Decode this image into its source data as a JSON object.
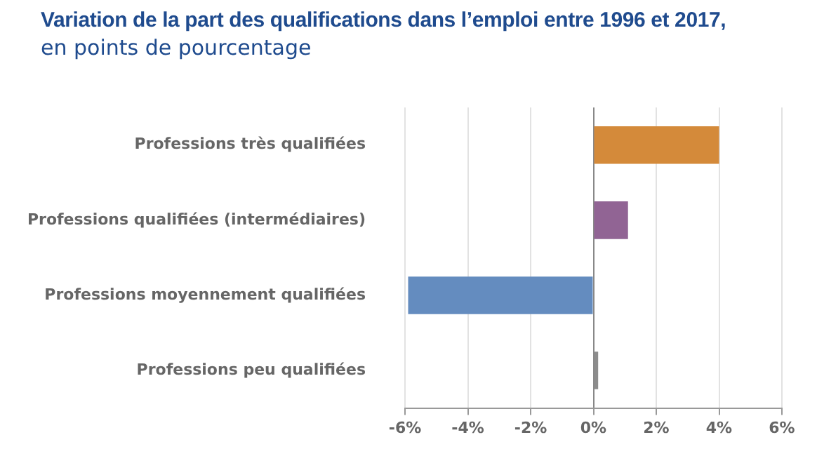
{
  "chart_data": {
    "type": "bar",
    "orientation": "horizontal",
    "title": "Variation de la part des qualifications dans l’emploi entre 1996 et 2017,",
    "subtitle": "en points de pourcentage",
    "categories": [
      "Professions très qualifiées",
      "Professions qualifiées (intermédiaires)",
      "Professions moyennement qualifiées",
      "Professions peu qualifiées"
    ],
    "values": [
      4.0,
      1.1,
      -5.9,
      0.15
    ],
    "colors": [
      "#d48a3a",
      "#916494",
      "#648cbf",
      "#8c8c8c"
    ],
    "xlim": [
      -6,
      6
    ],
    "xticks": [
      {
        "value": -6,
        "label": "-6%"
      },
      {
        "value": -4,
        "label": "-4%"
      },
      {
        "value": -2,
        "label": "-2%"
      },
      {
        "value": 0,
        "label": "0%"
      },
      {
        "value": 2,
        "label": "2%"
      },
      {
        "value": 4,
        "label": "4%"
      },
      {
        "value": 6,
        "label": "6%"
      }
    ],
    "grid": "x",
    "legend": false
  }
}
